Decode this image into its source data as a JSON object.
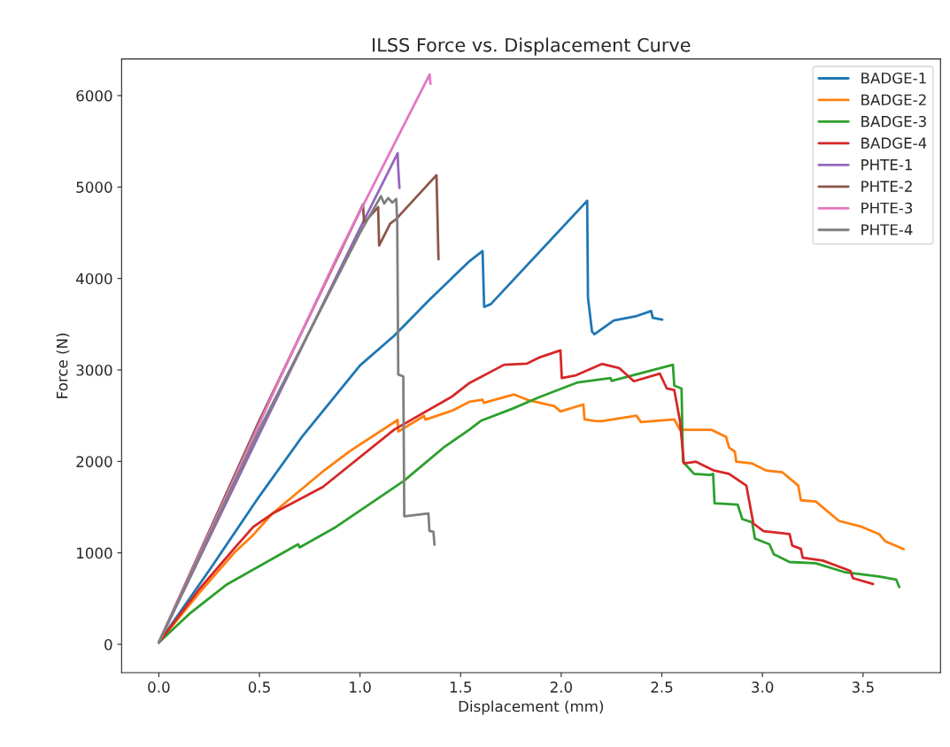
{
  "chart_data": {
    "type": "line",
    "title": "ILSS Force vs. Displacement Curve",
    "xlabel": "Displacement (mm)",
    "ylabel": "Force (N)",
    "xlim": [
      -0.185,
      3.885
    ],
    "ylim": [
      -310,
      6400
    ],
    "xticks": [
      {
        "value": 0,
        "label": "0.0"
      },
      {
        "value": 0.5,
        "label": "0.5"
      },
      {
        "value": 1,
        "label": "1.0"
      },
      {
        "value": 1.5,
        "label": "1.5"
      },
      {
        "value": 2,
        "label": "2.0"
      },
      {
        "value": 2.5,
        "label": "2.5"
      },
      {
        "value": 3,
        "label": "3.0"
      },
      {
        "value": 3.5,
        "label": "3.5"
      }
    ],
    "yticks": [
      0,
      1000,
      2000,
      3000,
      4000,
      5000,
      6000
    ],
    "grid": false,
    "legend": "top right",
    "marker": "none",
    "line_style": "solid",
    "series": [
      {
        "name": "BADGE-1",
        "color": "#1f77b4",
        "x": [
          0,
          0.254,
          0.5,
          0.712,
          1.0,
          1.17,
          1.346,
          1.544,
          1.609,
          1.617,
          1.65,
          2.129,
          2.133,
          2.153,
          2.165,
          2.261,
          2.375,
          2.447,
          2.455,
          2.502
        ],
        "values": [
          20,
          820,
          1620,
          2270,
          3050,
          3375,
          3770,
          4190,
          4300,
          3690,
          3720,
          4850,
          3790,
          3420,
          3390,
          3540,
          3590,
          3645,
          3570,
          3550
        ]
      },
      {
        "name": "BADGE-2",
        "color": "#ff7f0e",
        "x": [
          0,
          0.2,
          0.376,
          0.469,
          0.563,
          0.815,
          0.955,
          1.187,
          1.19,
          1.318,
          1.325,
          1.458,
          1.544,
          1.609,
          1.615,
          1.766,
          1.837,
          1.966,
          1.996,
          2.11,
          2.116,
          2.168,
          2.2,
          2.374,
          2.396,
          2.562,
          2.59,
          2.748,
          2.82,
          2.834,
          2.863,
          2.87,
          2.949,
          3.02,
          3.1,
          3.178,
          3.191,
          3.265,
          3.38,
          3.493,
          3.58,
          3.61,
          3.702
        ],
        "values": [
          20,
          560,
          1003,
          1196,
          1427,
          1890,
          2121,
          2453,
          2327,
          2497,
          2457,
          2555,
          2652,
          2674,
          2640,
          2732,
          2670,
          2604,
          2546,
          2623,
          2459,
          2443,
          2440,
          2500,
          2430,
          2459,
          2346,
          2345,
          2266,
          2153,
          2105,
          1996,
          1977,
          1900,
          1880,
          1736,
          1575,
          1562,
          1350,
          1285,
          1205,
          1128,
          1041
        ]
      },
      {
        "name": "BADGE-3",
        "color": "#2ca02c",
        "x": [
          0,
          0.15,
          0.339,
          0.692,
          0.7,
          0.88,
          1.216,
          1.42,
          1.544,
          1.6,
          1.759,
          1.888,
          2.082,
          2.245,
          2.25,
          2.555,
          2.562,
          2.598,
          2.605,
          2.66,
          2.74,
          2.755,
          2.762,
          2.877,
          2.9,
          2.949,
          2.963,
          3.035,
          3.057,
          3.135,
          3.265,
          3.406,
          3.58,
          3.665,
          3.68
        ],
        "values": [
          20,
          330,
          656,
          1094,
          1060,
          1283,
          1784,
          2160,
          2348,
          2443,
          2578,
          2700,
          2864,
          2912,
          2880,
          3057,
          2829,
          2797,
          1996,
          1864,
          1851,
          1864,
          1543,
          1527,
          1369,
          1334,
          1157,
          1093,
          984,
          900,
          887,
          791,
          742,
          707,
          627
        ]
      },
      {
        "name": "BADGE-4",
        "color": "#d62728",
        "x": [
          0,
          0.2,
          0.376,
          0.469,
          0.563,
          0.815,
          1.17,
          1.458,
          1.544,
          1.716,
          1.83,
          1.888,
          1.996,
          2.003,
          2.073,
          2.202,
          2.288,
          2.361,
          2.49,
          2.525,
          2.562,
          2.59,
          2.61,
          2.67,
          2.76,
          2.834,
          2.92,
          2.955,
          3.006,
          3.135,
          3.148,
          3.191,
          3.2,
          3.3,
          3.437,
          3.45,
          3.55
        ],
        "values": [
          20,
          600,
          1051,
          1283,
          1427,
          1720,
          2348,
          2710,
          2858,
          3057,
          3070,
          3134,
          3214,
          2912,
          2941,
          3066,
          3021,
          2877,
          2960,
          2797,
          2781,
          2443,
          1977,
          1996,
          1900,
          1864,
          1736,
          1321,
          1237,
          1205,
          1080,
          1044,
          948,
          916,
          803,
          723,
          659
        ]
      },
      {
        "name": "PHTE-1",
        "color": "#9467bd",
        "x": [
          0,
          0.5,
          1.0,
          1.187,
          1.19,
          1.196
        ],
        "values": [
          20,
          2300,
          4550,
          5370,
          5200,
          4990
        ]
      },
      {
        "name": "PHTE-2",
        "color": "#8c564b",
        "x": [
          0,
          0.5,
          1.015,
          1.02,
          1.09,
          1.095,
          1.15,
          1.18,
          1.2,
          1.38,
          1.39
        ],
        "values": [
          20,
          2450,
          4810,
          4610,
          4780,
          4360,
          4600,
          4650,
          4700,
          5130,
          4210
        ]
      },
      {
        "name": "PHTE-3",
        "color": "#e377c2",
        "x": [
          0,
          0.3,
          0.6,
          0.9,
          1.2,
          1.346,
          1.35
        ],
        "values": [
          20,
          1450,
          2900,
          4300,
          5600,
          6230,
          6130
        ]
      },
      {
        "name": "PHTE-4",
        "color": "#7f7f7f",
        "x": [
          0,
          0.5,
          1.0,
          1.104,
          1.12,
          1.14,
          1.16,
          1.18,
          1.185,
          1.19,
          1.215,
          1.22,
          1.34,
          1.345,
          1.365,
          1.37
        ],
        "values": [
          20,
          2350,
          4500,
          4900,
          4820,
          4880,
          4830,
          4870,
          4600,
          2950,
          2930,
          1400,
          1430,
          1240,
          1230,
          1090
        ]
      }
    ]
  }
}
